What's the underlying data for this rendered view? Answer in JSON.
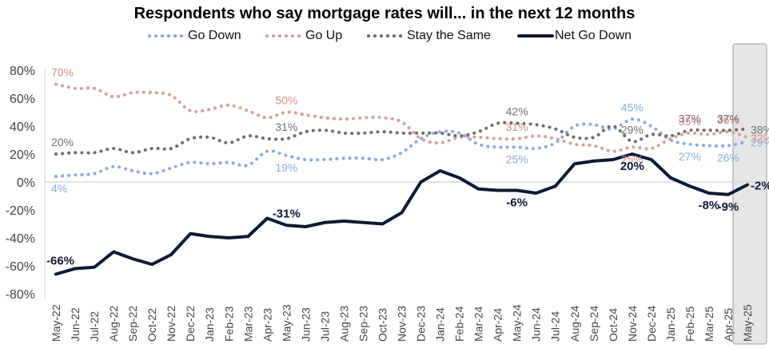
{
  "chart_data": {
    "type": "line",
    "title": "Respondents who say mortgage rates will... in the next 12 months",
    "xlabel": "",
    "ylabel": "",
    "ylim": [
      -80,
      80
    ],
    "yticks": [
      80,
      60,
      40,
      20,
      0,
      -20,
      -40,
      -60,
      -80
    ],
    "ytick_labels": [
      "80%",
      "60%",
      "40%",
      "20%",
      "0%",
      "-20%",
      "-40%",
      "-60%",
      "-80%"
    ],
    "grid": false,
    "legend_position": "top-center",
    "highlighted_category": "May-25",
    "categories": [
      "May-22",
      "Jun-22",
      "Jul-22",
      "Aug-22",
      "Sep-22",
      "Oct-22",
      "Nov-22",
      "Dec-22",
      "Jan-23",
      "Feb-23",
      "Mar-23",
      "Apr-23",
      "May-23",
      "Jun-23",
      "Jul-23",
      "Aug-23",
      "Sep-23",
      "Oct-23",
      "Nov-23",
      "Dec-23",
      "Jan-24",
      "Feb-24",
      "Mar-24",
      "Apr-24",
      "May-24",
      "Jun-24",
      "Jul-24",
      "Aug-24",
      "Sep-24",
      "Oct-24",
      "Nov-24",
      "Dec-24",
      "Jan-25",
      "Feb-25",
      "Mar-25",
      "Apr-25",
      "May-25"
    ],
    "series": [
      {
        "name": "Go Down",
        "style": "dotted",
        "color": "#8eaadb",
        "label_color": "#8eaadb",
        "values": [
          4,
          5,
          6,
          11,
          8,
          6,
          10,
          14,
          13,
          14,
          12,
          22,
          19,
          16,
          16,
          17,
          17,
          16,
          21,
          31,
          36,
          35,
          27,
          25,
          25,
          24,
          28,
          40,
          41,
          38,
          45,
          40,
          30,
          27,
          26,
          26,
          29
        ],
        "data_labels": [
          {
            "index": 0,
            "text": "4%",
            "pos": "below"
          },
          {
            "index": 12,
            "text": "19%",
            "pos": "below"
          },
          {
            "index": 24,
            "text": "25%",
            "pos": "below"
          },
          {
            "index": 30,
            "text": "45%",
            "pos": "above"
          },
          {
            "index": 33,
            "text": "27%",
            "pos": "below"
          },
          {
            "index": 35,
            "text": "26%",
            "pos": "below"
          },
          {
            "index": 36,
            "text": "29%",
            "pos": "right"
          }
        ]
      },
      {
        "name": "Go Up",
        "style": "dotted",
        "color": "#d5a09c",
        "label_color": "#d28e88",
        "values": [
          70,
          67,
          67,
          61,
          64,
          64,
          62,
          51,
          52,
          55,
          51,
          46,
          50,
          48,
          46,
          45,
          46,
          46,
          43,
          31,
          28,
          32,
          32,
          31,
          31,
          33,
          31,
          27,
          26,
          22,
          25,
          24,
          31,
          35,
          34,
          36,
          32
        ],
        "data_labels": [
          {
            "index": 0,
            "text": "70%",
            "pos": "above"
          },
          {
            "index": 12,
            "text": "50%",
            "pos": "above"
          },
          {
            "index": 24,
            "text": "31%",
            "pos": "above"
          },
          {
            "index": 30,
            "text": "25%",
            "pos": "below"
          },
          {
            "index": 33,
            "text": "35%",
            "pos": "above"
          },
          {
            "index": 35,
            "text": "36%",
            "pos": "above"
          },
          {
            "index": 36,
            "text": "32%",
            "pos": "right"
          }
        ]
      },
      {
        "name": "Stay the Same",
        "style": "dotted",
        "color": "#6e6e6e",
        "label_color": "#6e6e6e",
        "values": [
          20,
          21,
          21,
          24,
          21,
          24,
          24,
          31,
          32,
          28,
          33,
          31,
          31,
          36,
          37,
          35,
          35,
          36,
          35,
          35,
          35,
          33,
          36,
          42,
          42,
          41,
          38,
          32,
          32,
          40,
          29,
          34,
          33,
          37,
          37,
          37,
          38
        ],
        "data_labels": [
          {
            "index": 0,
            "text": "20%",
            "pos": "above"
          },
          {
            "index": 12,
            "text": "31%",
            "pos": "above"
          },
          {
            "index": 24,
            "text": "42%",
            "pos": "above"
          },
          {
            "index": 30,
            "text": "29%",
            "pos": "above"
          },
          {
            "index": 33,
            "text": "37%",
            "pos": "above"
          },
          {
            "index": 35,
            "text": "37%",
            "pos": "above"
          },
          {
            "index": 36,
            "text": "38%",
            "pos": "right"
          }
        ]
      },
      {
        "name": "Net Go Down",
        "style": "solid",
        "color": "#0d1a33",
        "label_color": "#0d1a33",
        "values": [
          -66,
          -62,
          -61,
          -50,
          -55,
          -59,
          -52,
          -37,
          -39,
          -40,
          -39,
          -26,
          -31,
          -32,
          -29,
          -28,
          -29,
          -30,
          -22,
          0,
          8,
          3,
          -5,
          -6,
          -6,
          -8,
          -3,
          13,
          15,
          16,
          20,
          16,
          3,
          -3,
          -8,
          -9,
          -2
        ],
        "data_labels": [
          {
            "index": 0,
            "text": "-66%",
            "pos": "above"
          },
          {
            "index": 12,
            "text": "-31%",
            "pos": "above"
          },
          {
            "index": 24,
            "text": "-6%",
            "pos": "below"
          },
          {
            "index": 30,
            "text": "20%",
            "pos": "below"
          },
          {
            "index": 34,
            "text": "-8%",
            "pos": "below"
          },
          {
            "index": 35,
            "text": "-9%",
            "pos": "below"
          },
          {
            "index": 36,
            "text": "-2%",
            "pos": "right"
          }
        ]
      }
    ]
  },
  "legend": {
    "items": [
      {
        "label": "Go Down"
      },
      {
        "label": "Go Up"
      },
      {
        "label": "Stay the Same"
      },
      {
        "label": "Net Go Down"
      }
    ]
  }
}
